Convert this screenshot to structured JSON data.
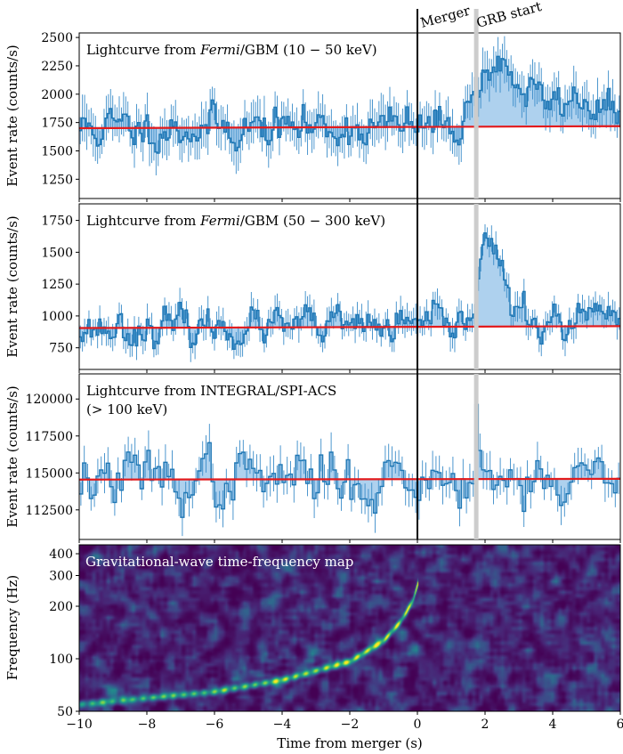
{
  "figure": {
    "xlabel": "Time from merger (s)",
    "xlim": [
      -10,
      6
    ],
    "xticks": [
      -10,
      -8,
      -6,
      -4,
      -2,
      0,
      2,
      4,
      6
    ],
    "xtick_labels": [
      "−10",
      "−8",
      "−6",
      "−4",
      "−2",
      "0",
      "2",
      "4",
      "6"
    ],
    "markers": [
      {
        "label": "Merger",
        "x": 0,
        "style": "black-line"
      },
      {
        "label": "GRB start",
        "x": 1.74,
        "style": "grey-band"
      }
    ],
    "colors": {
      "steps": "#1f77b4",
      "fill": "#aed1ee",
      "errbar": "#3a8cc9",
      "baseline": "#e31a1c",
      "band": "#cccccc"
    }
  },
  "chart_data": [
    {
      "type": "line",
      "title_parts": [
        "Lightcurve from ",
        "Fermi",
        "/GBM (10 − 50 keV)"
      ],
      "ylabel": "Event rate (counts/s)",
      "ylim": [
        1080,
        2540
      ],
      "yticks": [
        1250,
        1500,
        1750,
        2000,
        2250,
        2500
      ],
      "ytick_labels": [
        "1250",
        "1500",
        "1750",
        "2000",
        "2250",
        "2500"
      ],
      "baseline": [
        1700,
        1718
      ],
      "bin_width": 0.064,
      "noise_sigma": 95,
      "err": 160,
      "seed": 11,
      "pulses": [
        {
          "t": 2.0,
          "amp": 430,
          "rise": 0.35,
          "decay": 0.7
        },
        {
          "t": 2.9,
          "amp": 230,
          "rise": 0.6,
          "decay": 1.4
        },
        {
          "t": 4.9,
          "amp": 160,
          "rise": 0.5,
          "decay": 0.8
        }
      ]
    },
    {
      "type": "line",
      "title_parts": [
        "Lightcurve from ",
        "Fermi",
        "/GBM (50 − 300 keV)"
      ],
      "ylabel": "Event rate (counts/s)",
      "ylim": [
        580,
        1880
      ],
      "yticks": [
        750,
        1000,
        1250,
        1500,
        1750
      ],
      "ytick_labels": [
        "750",
        "1000",
        "1250",
        "1500",
        "1750"
      ],
      "baseline": [
        905,
        920
      ],
      "bin_width": 0.064,
      "noise_sigma": 75,
      "err": 95,
      "seed": 23,
      "pulses": [
        {
          "t": 2.0,
          "amp": 700,
          "rise": 0.22,
          "decay": 0.35
        },
        {
          "t": 2.6,
          "amp": 120,
          "rise": 0.4,
          "decay": 0.6
        },
        {
          "t": 5.4,
          "amp": 90,
          "rise": 0.4,
          "decay": 0.6
        }
      ]
    },
    {
      "type": "line",
      "title_lines": [
        "Lightcurve from INTEGRAL/SPI-ACS",
        "(> 100 keV)"
      ],
      "ylabel": "Event rate (counts/s)",
      "ylim": [
        110500,
        121700
      ],
      "yticks": [
        112500,
        115000,
        117500,
        120000
      ],
      "ytick_labels": [
        "112500",
        "115000",
        "117500",
        "120000"
      ],
      "baseline": [
        114550,
        114600
      ],
      "bin_width": 0.1,
      "noise_sigma": 1050,
      "err": 1050,
      "seed": 37,
      "pulses": [
        {
          "t": 1.75,
          "amp": 5400,
          "rise": 0.04,
          "decay": 0.12
        },
        {
          "t": 1.6,
          "amp": 1800,
          "rise": 0.06,
          "decay": 0.12
        }
      ]
    },
    {
      "type": "heatmap",
      "title": "Gravitational-wave time-frequency map",
      "ylabel": "Frequency (Hz)",
      "yscale": "log",
      "ylim": [
        50,
        450
      ],
      "yticks": [
        50,
        100,
        200,
        300,
        400
      ],
      "ytick_labels": [
        "50",
        "100",
        "200",
        "300",
        "400"
      ],
      "colormap": "viridis",
      "chirp": [
        {
          "t": -10,
          "f": 55
        },
        {
          "t": -6,
          "f": 65
        },
        {
          "t": -4,
          "f": 76
        },
        {
          "t": -2,
          "f": 97
        },
        {
          "t": -1,
          "f": 128
        },
        {
          "t": -0.5,
          "f": 165
        },
        {
          "t": -0.15,
          "f": 215
        },
        {
          "t": 0,
          "f": 270
        }
      ]
    }
  ]
}
